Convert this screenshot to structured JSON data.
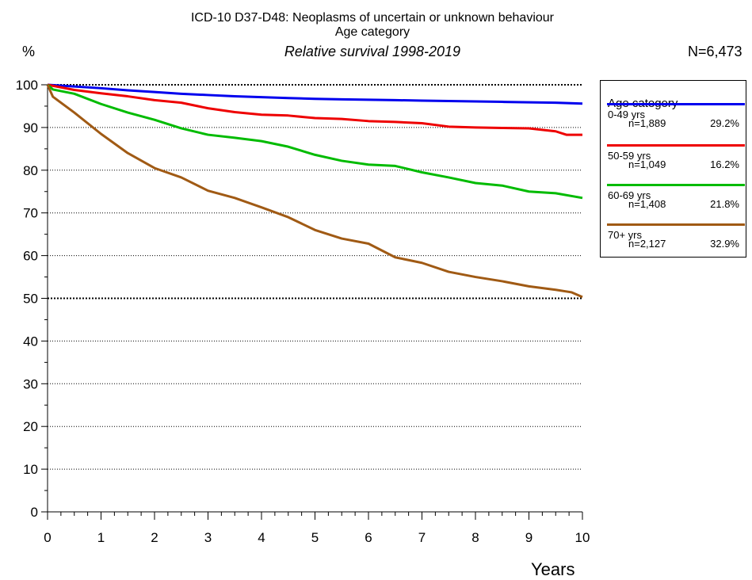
{
  "header": {
    "title_line1": "ICD-10 D37-D48: Neoplasms of uncertain or unknown behaviour",
    "title_line2": "Age category",
    "title_line3": "Relative survival 1998-2019",
    "y_unit": "%",
    "total_n": "N=6,473"
  },
  "legend": {
    "title": "Age category",
    "items": [
      {
        "name": "0-49 yrs",
        "count": "n=1,889",
        "pct": "29.2%",
        "color": "#0000ee"
      },
      {
        "name": "50-59 yrs",
        "count": "n=1,049",
        "pct": "16.2%",
        "color": "#ee0000"
      },
      {
        "name": "60-69 yrs",
        "count": "n=1,408",
        "pct": "21.8%",
        "color": "#00bb00"
      },
      {
        "name": "70+ yrs",
        "count": "n=2,127",
        "pct": "32.9%",
        "color": "#a05a14"
      }
    ]
  },
  "chart_data": {
    "type": "line",
    "title": "ICD-10 D37-D48: Neoplasms of uncertain or unknown behaviour",
    "subtitle": "Relative survival 1998-2019",
    "xlabel": "Years",
    "ylabel": "%",
    "xlim": [
      0,
      10
    ],
    "ylim": [
      0,
      100
    ],
    "x_ticks": [
      "0",
      "1",
      "2",
      "3",
      "4",
      "5",
      "6",
      "7",
      "8",
      "9",
      "10"
    ],
    "y_ticks": [
      "0",
      "10",
      "20",
      "30",
      "40",
      "50",
      "60",
      "70",
      "80",
      "90",
      "100"
    ],
    "grid": "horizontal dotted at 10-unit intervals; emphasized at 50 and 100",
    "legend_position": "right",
    "series": [
      {
        "name": "0-49 yrs",
        "color": "#0000ee",
        "x": [
          0,
          0.5,
          1,
          1.5,
          2,
          2.5,
          3,
          3.5,
          4,
          4.5,
          5,
          5.5,
          6,
          6.5,
          7,
          7.5,
          8,
          8.5,
          9,
          9.5,
          10
        ],
        "y": [
          100,
          99.6,
          99.2,
          98.7,
          98.3,
          97.9,
          97.6,
          97.3,
          97.1,
          96.9,
          96.7,
          96.6,
          96.5,
          96.4,
          96.3,
          96.2,
          96.1,
          96.0,
          95.9,
          95.8,
          95.6
        ]
      },
      {
        "name": "50-59 yrs",
        "color": "#ee0000",
        "x": [
          0,
          0.5,
          1,
          1.5,
          2,
          2.5,
          3,
          3.5,
          4,
          4.5,
          5,
          5.5,
          6,
          6.5,
          7,
          7.5,
          8,
          8.5,
          9,
          9.5,
          9.7,
          10
        ],
        "y": [
          100,
          98.8,
          98.0,
          97.3,
          96.4,
          95.8,
          94.5,
          93.6,
          93.0,
          92.8,
          92.2,
          92.0,
          91.5,
          91.3,
          91.0,
          90.2,
          90.0,
          89.9,
          89.8,
          89.1,
          88.3,
          88.3
        ]
      },
      {
        "name": "60-69 yrs",
        "color": "#00bb00",
        "x": [
          0,
          0.1,
          0.5,
          1,
          1.5,
          2,
          2.5,
          3,
          3.5,
          4,
          4.5,
          5,
          5.5,
          6,
          6.5,
          7,
          7.5,
          8,
          8.5,
          9,
          9.5,
          10
        ],
        "y": [
          100,
          98.9,
          97.9,
          95.5,
          93.5,
          91.8,
          89.8,
          88.3,
          87.6,
          86.8,
          85.5,
          83.6,
          82.2,
          81.3,
          81.0,
          79.5,
          78.3,
          77.0,
          76.4,
          75.0,
          74.6,
          73.5
        ]
      },
      {
        "name": "70+ yrs",
        "color": "#a05a14",
        "x": [
          0,
          0.1,
          0.5,
          1,
          1.5,
          2,
          2.5,
          3,
          3.5,
          4,
          4.5,
          5,
          5.5,
          6,
          6.5,
          7,
          7.5,
          8,
          8.5,
          9,
          9.5,
          9.8,
          10
        ],
        "y": [
          100,
          97.2,
          93.5,
          88.5,
          84.0,
          80.5,
          78.3,
          75.2,
          73.5,
          71.3,
          69.0,
          66.0,
          64.0,
          62.8,
          59.6,
          58.3,
          56.2,
          55.0,
          54.0,
          52.8,
          52.0,
          51.4,
          50.3
        ]
      }
    ]
  }
}
